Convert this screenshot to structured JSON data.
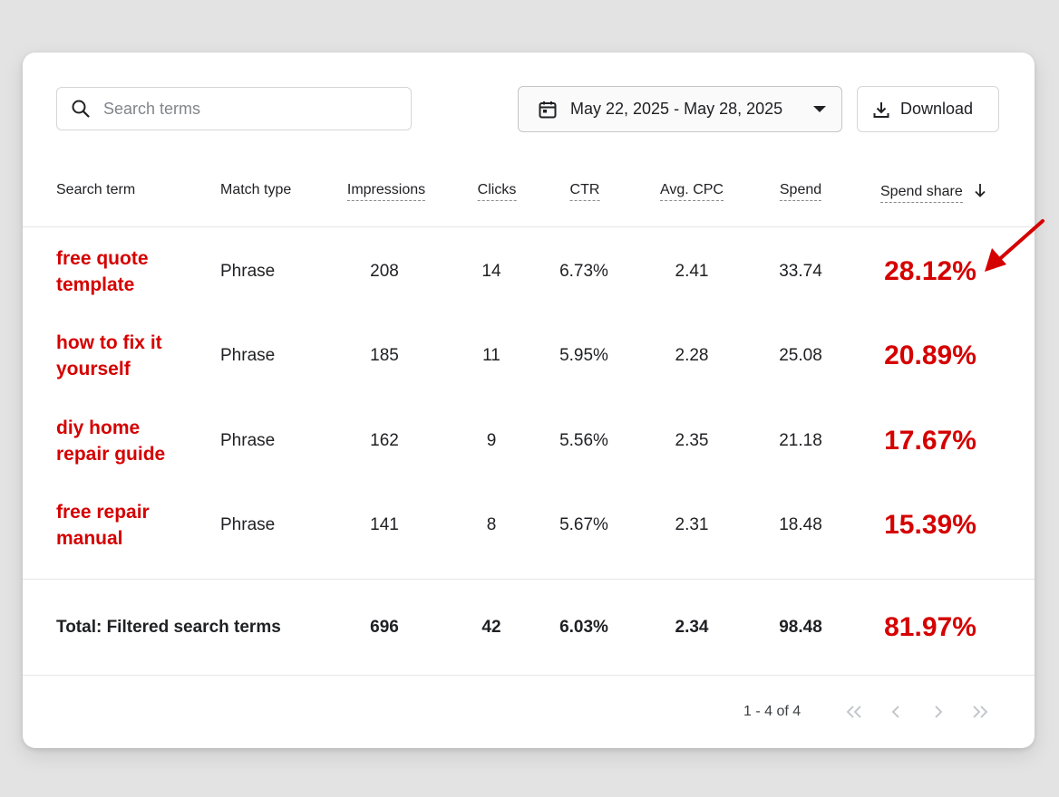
{
  "toolbar": {
    "search_placeholder": "Search terms",
    "date_range": "May 22, 2025 - May 28, 2025",
    "download_label": "Download"
  },
  "table": {
    "headers": {
      "search_term": "Search term",
      "match_type": "Match type",
      "impressions": "Impressions",
      "clicks": "Clicks",
      "ctr": "CTR",
      "avg_cpc": "Avg. CPC",
      "spend": "Spend",
      "spend_share": "Spend share"
    },
    "sort_column": "spend_share",
    "sort_direction": "descending",
    "rows": [
      {
        "term": "free quote template",
        "match": "Phrase",
        "impressions": "208",
        "clicks": "14",
        "ctr": "6.73%",
        "cpc": "2.41",
        "spend": "33.74",
        "share": "28.12%"
      },
      {
        "term": "how to fix it yourself",
        "match": "Phrase",
        "impressions": "185",
        "clicks": "11",
        "ctr": "5.95%",
        "cpc": "2.28",
        "spend": "25.08",
        "share": "20.89%"
      },
      {
        "term": "diy home repair guide",
        "match": "Phrase",
        "impressions": "162",
        "clicks": "9",
        "ctr": "5.56%",
        "cpc": "2.35",
        "spend": "21.18",
        "share": "17.67%"
      },
      {
        "term": "free repair manual",
        "match": "Phrase",
        "impressions": "141",
        "clicks": "8",
        "ctr": "5.67%",
        "cpc": "2.31",
        "spend": "18.48",
        "share": "15.39%"
      }
    ],
    "total": {
      "label": "Total: Filtered search terms",
      "impressions": "696",
      "clicks": "42",
      "ctr": "6.03%",
      "cpc": "2.34",
      "spend": "98.48",
      "share": "81.97%"
    }
  },
  "pagination": {
    "range": "1 - 4 of 4"
  },
  "colors": {
    "highlight": "#d50000",
    "background": "#e3e3e3",
    "card": "#ffffff"
  },
  "icons": [
    "search-icon",
    "calendar-icon",
    "caret-down-icon",
    "download-icon",
    "sort-arrow-down-icon",
    "first-page-icon",
    "previous-page-icon",
    "next-page-icon",
    "last-page-icon",
    "annotation-arrow-icon"
  ]
}
